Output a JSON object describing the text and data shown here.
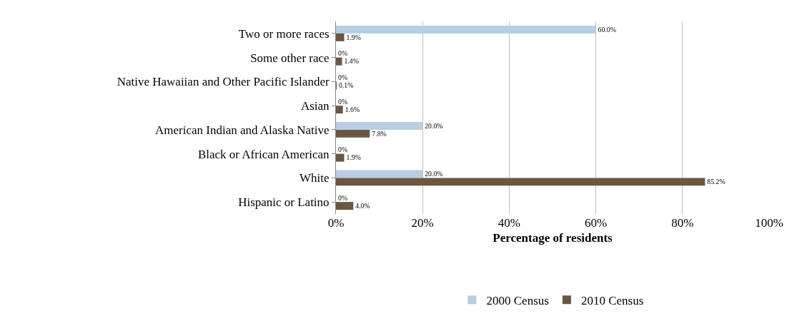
{
  "chart_data": {
    "type": "bar",
    "orientation": "horizontal",
    "xlabel": "Percentage of residents",
    "categories": [
      "Two or more races",
      "Some other race",
      "Native Hawaiian and Other Pacific Islander",
      "Asian",
      "American Indian and Alaska Native",
      "Black or African American",
      "White",
      "Hispanic or Latino"
    ],
    "series": [
      {
        "name": "2000 Census",
        "color": "#b9cde5",
        "values": [
          60,
          0,
          0,
          0,
          20,
          0,
          20,
          0
        ],
        "value_labels": [
          "60.0%",
          "0%",
          "0%",
          "0%",
          "20.0%",
          "0%",
          "20.0%",
          "0%"
        ]
      },
      {
        "name": "2010 Census",
        "color": "#6b563f",
        "values": [
          1.9,
          1.4,
          0.1,
          1.6,
          7.8,
          1.9,
          85.2,
          4.0
        ],
        "value_labels": [
          "1.9%",
          "1.4%",
          "0.1%",
          "1.6%",
          "7.8%",
          "1.9%",
          "85.2%",
          "4.0%"
        ]
      }
    ],
    "xlim": [
      0,
      100
    ],
    "xticks": [
      {
        "value": 0,
        "label": "0%"
      },
      {
        "value": 20,
        "label": "20%"
      },
      {
        "value": 40,
        "label": "40%"
      },
      {
        "value": 60,
        "label": "60%"
      },
      {
        "value": 80,
        "label": "80%"
      },
      {
        "value": 100,
        "label": "100%"
      }
    ],
    "grid": "x",
    "legend": "bottom"
  }
}
